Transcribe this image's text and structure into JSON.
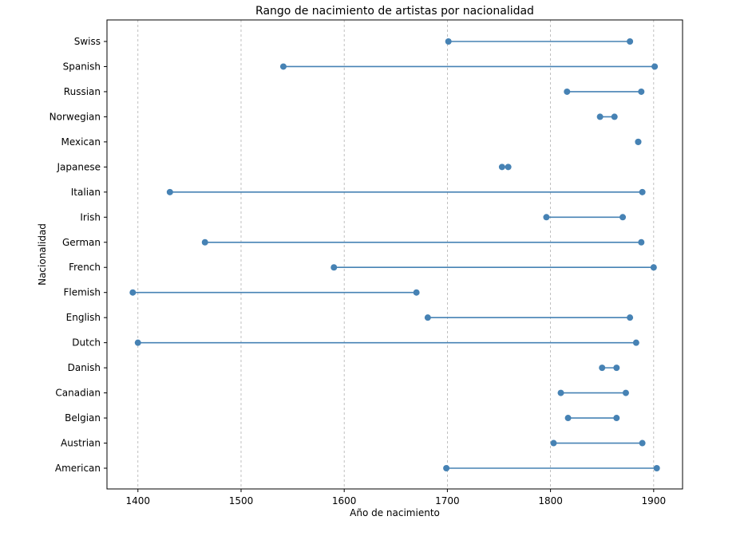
{
  "chart_data": {
    "type": "dumbbell",
    "title": "Rango de nacimiento de artistas por nacionalidad",
    "xlabel": "Año de nacimiento",
    "ylabel": "Nacionalidad",
    "xlim": [
      1370,
      1928
    ],
    "xticks": [
      1400,
      1500,
      1600,
      1700,
      1800,
      1900
    ],
    "grid": "x-dashed",
    "colors": {
      "series": "#4682b4"
    },
    "categories": [
      "American",
      "Austrian",
      "Belgian",
      "Canadian",
      "Danish",
      "Dutch",
      "English",
      "Flemish",
      "French",
      "German",
      "Irish",
      "Italian",
      "Japanese",
      "Mexican",
      "Norwegian",
      "Russian",
      "Spanish",
      "Swiss"
    ],
    "series": [
      {
        "name": "",
        "ranges": [
          [
            1699,
            1903
          ],
          [
            1803,
            1889
          ],
          [
            1817,
            1864
          ],
          [
            1810,
            1873
          ],
          [
            1850,
            1864
          ],
          [
            1400,
            1883
          ],
          [
            1681,
            1877
          ],
          [
            1395,
            1670
          ],
          [
            1590,
            1900
          ],
          [
            1465,
            1888
          ],
          [
            1796,
            1870
          ],
          [
            1431,
            1889
          ],
          [
            1753,
            1759
          ],
          [
            1885,
            1885
          ],
          [
            1848,
            1862
          ],
          [
            1816,
            1888
          ],
          [
            1541,
            1901
          ],
          [
            1701,
            1877
          ]
        ]
      }
    ]
  }
}
